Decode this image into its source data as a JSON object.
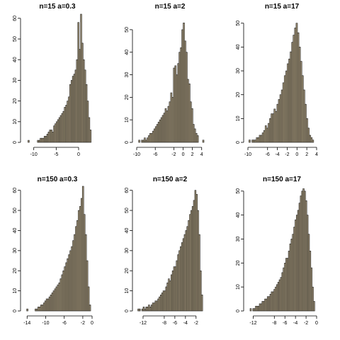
{
  "colors": {
    "bar_fill": "#a39578",
    "bar_edge": "#1e1e1e",
    "axis": "#000000",
    "background": "#ffffff"
  },
  "chart_data": [
    {
      "type": "bar",
      "title": "n=15  a=0.3",
      "xlim": [
        -12,
        3
      ],
      "ylim": [
        0,
        62
      ],
      "grid": false,
      "xticks": [
        -10,
        -5,
        0
      ],
      "xtick_labels": [
        "-10",
        "-5",
        "0"
      ],
      "yticks": [
        0,
        10,
        20,
        30,
        40,
        50,
        60
      ],
      "ytick_labels": [
        "0",
        "10",
        "20",
        "30",
        "40",
        "50",
        "60"
      ],
      "bins": [
        -11.3,
        -11.0,
        -10.7,
        -10.4,
        -10.1,
        -9.8,
        -9.5,
        -9.2,
        -8.9,
        -8.6,
        -8.3,
        -8.0,
        -7.7,
        -7.4,
        -7.1,
        -6.8,
        -6.5,
        -6.2,
        -5.9,
        -5.6,
        -5.3,
        -5.0,
        -4.7,
        -4.4,
        -4.1,
        -3.8,
        -3.5,
        -3.2,
        -2.9,
        -2.6,
        -2.3,
        -2.0,
        -1.7,
        -1.4,
        -1.1,
        -0.8,
        -0.5,
        -0.2,
        0.1,
        0.4,
        0.7,
        1.0,
        1.3,
        1.6,
        1.9,
        2.2,
        2.5
      ],
      "values": [
        1,
        0,
        0,
        0,
        0,
        0,
        0,
        1,
        1,
        2,
        2,
        2,
        3,
        3,
        4,
        5,
        6,
        6,
        5,
        8,
        9,
        10,
        11,
        12,
        13,
        14,
        15,
        17,
        18,
        20,
        22,
        28,
        30,
        32,
        33,
        35,
        40,
        58,
        45,
        62,
        48,
        40,
        35,
        28,
        20,
        12,
        6
      ]
    },
    {
      "type": "bar",
      "title": "n=15  a=2",
      "xlim": [
        -10,
        4.5
      ],
      "ylim": [
        0,
        55
      ],
      "grid": false,
      "xticks": [
        -10,
        -6,
        -2,
        0,
        2,
        4
      ],
      "xtick_labels": [
        "-10",
        "-6",
        "-2",
        "0",
        "2",
        "4"
      ],
      "yticks": [
        0,
        10,
        20,
        30,
        40,
        50
      ],
      "ytick_labels": [
        "0",
        "10",
        "20",
        "30",
        "40",
        "50"
      ],
      "bins": [
        -9.6,
        -9.3,
        -9.0,
        -8.7,
        -8.4,
        -8.1,
        -7.8,
        -7.5,
        -7.2,
        -6.9,
        -6.6,
        -6.3,
        -6.0,
        -5.7,
        -5.4,
        -5.1,
        -4.8,
        -4.5,
        -4.2,
        -3.9,
        -3.6,
        -3.3,
        -3.0,
        -2.7,
        -2.4,
        -2.1,
        -1.8,
        -1.5,
        -1.2,
        -0.9,
        -0.6,
        -0.3,
        0.0,
        0.3,
        0.6,
        0.9,
        1.2,
        1.5,
        1.8,
        2.1,
        2.4,
        2.7,
        3.0,
        3.3,
        3.6,
        3.9,
        4.2
      ],
      "values": [
        1,
        0,
        1,
        1,
        2,
        1,
        2,
        3,
        4,
        4,
        5,
        6,
        7,
        8,
        9,
        10,
        11,
        12,
        13,
        15,
        14,
        16,
        18,
        22,
        20,
        33,
        34,
        30,
        35,
        40,
        42,
        50,
        53,
        45,
        40,
        28,
        26,
        18,
        15,
        8,
        6,
        4,
        3,
        0,
        0,
        0,
        1
      ]
    },
    {
      "type": "bar",
      "title": "n=15  a=17",
      "xlim": [
        -10,
        4
      ],
      "ylim": [
        0,
        52
      ],
      "grid": false,
      "xticks": [
        -10,
        -6,
        -4,
        -2,
        0,
        2,
        4
      ],
      "xtick_labels": [
        "-10",
        "-6",
        "-4",
        "-2",
        "0",
        "2",
        "4"
      ],
      "yticks": [
        0,
        10,
        20,
        30,
        40,
        50
      ],
      "ytick_labels": [
        "0",
        "10",
        "20",
        "30",
        "40",
        "50"
      ],
      "bins": [
        -9.8,
        -9.5,
        -9.2,
        -8.9,
        -8.6,
        -8.3,
        -8.0,
        -7.7,
        -7.4,
        -7.1,
        -6.8,
        -6.5,
        -6.2,
        -5.9,
        -5.6,
        -5.3,
        -5.0,
        -4.7,
        -4.4,
        -4.1,
        -3.8,
        -3.5,
        -3.2,
        -2.9,
        -2.6,
        -2.3,
        -2.0,
        -1.7,
        -1.4,
        -1.1,
        -0.8,
        -0.5,
        -0.2,
        0.1,
        0.4,
        0.7,
        1.0,
        1.3,
        1.6,
        1.9,
        2.2,
        2.5,
        2.8,
        3.1
      ],
      "values": [
        1,
        0,
        1,
        1,
        1,
        2,
        2,
        3,
        3,
        4,
        5,
        7,
        6,
        8,
        10,
        12,
        12,
        14,
        13,
        16,
        18,
        20,
        22,
        25,
        28,
        30,
        33,
        35,
        38,
        42,
        45,
        48,
        50,
        46,
        40,
        34,
        28,
        22,
        16,
        10,
        6,
        3,
        2,
        1
      ]
    },
    {
      "type": "bar",
      "title": "n=150  a=0.3",
      "xlim": [
        -14.5,
        0
      ],
      "ylim": [
        0,
        62
      ],
      "grid": false,
      "xticks": [
        -14,
        -10,
        -6,
        -2,
        0
      ],
      "xtick_labels": [
        "-14",
        "-10",
        "-6",
        "-2",
        "0"
      ],
      "yticks": [
        0,
        10,
        20,
        30,
        40,
        50,
        60
      ],
      "ytick_labels": [
        "0",
        "10",
        "20",
        "30",
        "40",
        "50",
        "60"
      ],
      "bins": [
        -14.1,
        -13.8,
        -13.5,
        -13.2,
        -12.9,
        -12.6,
        -12.3,
        -12.0,
        -11.7,
        -11.4,
        -11.1,
        -10.8,
        -10.5,
        -10.2,
        -9.9,
        -9.6,
        -9.3,
        -9.0,
        -8.7,
        -8.4,
        -8.1,
        -7.8,
        -7.5,
        -7.2,
        -6.9,
        -6.6,
        -6.3,
        -6.0,
        -5.7,
        -5.4,
        -5.1,
        -4.8,
        -4.5,
        -4.2,
        -3.9,
        -3.6,
        -3.3,
        -3.0,
        -2.7,
        -2.4,
        -2.1,
        -1.8,
        -1.5,
        -1.2,
        -0.9,
        -0.6
      ],
      "values": [
        1,
        0,
        0,
        0,
        0,
        0,
        1,
        1,
        2,
        2,
        3,
        3,
        4,
        5,
        6,
        6,
        7,
        8,
        9,
        10,
        11,
        12,
        13,
        14,
        16,
        18,
        20,
        22,
        24,
        26,
        28,
        30,
        32,
        35,
        38,
        42,
        45,
        50,
        52,
        56,
        62,
        48,
        38,
        25,
        12,
        3
      ]
    },
    {
      "type": "bar",
      "title": "n=150  a=2",
      "xlim": [
        -13.2,
        -0.5
      ],
      "ylim": [
        0,
        62
      ],
      "grid": false,
      "xticks": [
        -12,
        -8,
        -6,
        -4,
        -2
      ],
      "xtick_labels": [
        "-12",
        "-8",
        "-6",
        "-4",
        "-2"
      ],
      "yticks": [
        0,
        10,
        20,
        30,
        40,
        50,
        60
      ],
      "ytick_labels": [
        "0",
        "10",
        "20",
        "30",
        "40",
        "50",
        "60"
      ],
      "bins": [
        -13.0,
        -12.75,
        -12.5,
        -12.25,
        -12.0,
        -11.75,
        -11.5,
        -11.25,
        -11.0,
        -10.75,
        -10.5,
        -10.25,
        -10.0,
        -9.75,
        -9.5,
        -9.25,
        -9.0,
        -8.75,
        -8.5,
        -8.25,
        -8.0,
        -7.75,
        -7.5,
        -7.25,
        -7.0,
        -6.75,
        -6.5,
        -6.25,
        -6.0,
        -5.75,
        -5.5,
        -5.25,
        -5.0,
        -4.75,
        -4.5,
        -4.25,
        -4.0,
        -3.75,
        -3.5,
        -3.25,
        -3.0,
        -2.75,
        -2.5,
        -2.25,
        -2.0,
        -1.75,
        -1.5,
        -1.25,
        -1.0
      ],
      "values": [
        1,
        1,
        0,
        1,
        2,
        1,
        2,
        2,
        3,
        2,
        3,
        4,
        4,
        5,
        5,
        6,
        7,
        8,
        9,
        10,
        10,
        12,
        14,
        16,
        15,
        18,
        20,
        22,
        22,
        25,
        28,
        30,
        32,
        34,
        36,
        38,
        40,
        42,
        45,
        48,
        50,
        52,
        55,
        60,
        58,
        50,
        38,
        20,
        8
      ]
    },
    {
      "type": "bar",
      "title": "n=150  a=17",
      "xlim": [
        -13,
        0
      ],
      "ylim": [
        0,
        52
      ],
      "grid": false,
      "xticks": [
        -12,
        -8,
        -6,
        -4,
        -2,
        0
      ],
      "xtick_labels": [
        "-12",
        "-8",
        "-6",
        "-4",
        "-2",
        "0"
      ],
      "yticks": [
        0,
        10,
        20,
        30,
        40,
        50
      ],
      "ytick_labels": [
        "0",
        "10",
        "20",
        "30",
        "40",
        "50"
      ],
      "bins": [
        -12.6,
        -12.35,
        -12.1,
        -11.85,
        -11.6,
        -11.35,
        -11.1,
        -10.85,
        -10.6,
        -10.35,
        -10.1,
        -9.85,
        -9.6,
        -9.35,
        -9.1,
        -8.85,
        -8.6,
        -8.35,
        -8.1,
        -7.85,
        -7.6,
        -7.35,
        -7.1,
        -6.85,
        -6.6,
        -6.35,
        -6.1,
        -5.85,
        -5.6,
        -5.35,
        -5.1,
        -4.85,
        -4.6,
        -4.35,
        -4.1,
        -3.85,
        -3.6,
        -3.35,
        -3.1,
        -2.85,
        -2.6,
        -2.35,
        -2.1,
        -1.85,
        -1.6,
        -1.35,
        -1.1,
        -0.85,
        -0.6
      ],
      "values": [
        1,
        0,
        1,
        1,
        2,
        2,
        2,
        3,
        3,
        4,
        4,
        5,
        5,
        6,
        6,
        7,
        8,
        8,
        9,
        10,
        11,
        12,
        13,
        14,
        16,
        18,
        20,
        22,
        22,
        25,
        28,
        30,
        32,
        35,
        38,
        40,
        42,
        45,
        48,
        50,
        51,
        50,
        46,
        40,
        32,
        25,
        18,
        10,
        4
      ]
    }
  ]
}
